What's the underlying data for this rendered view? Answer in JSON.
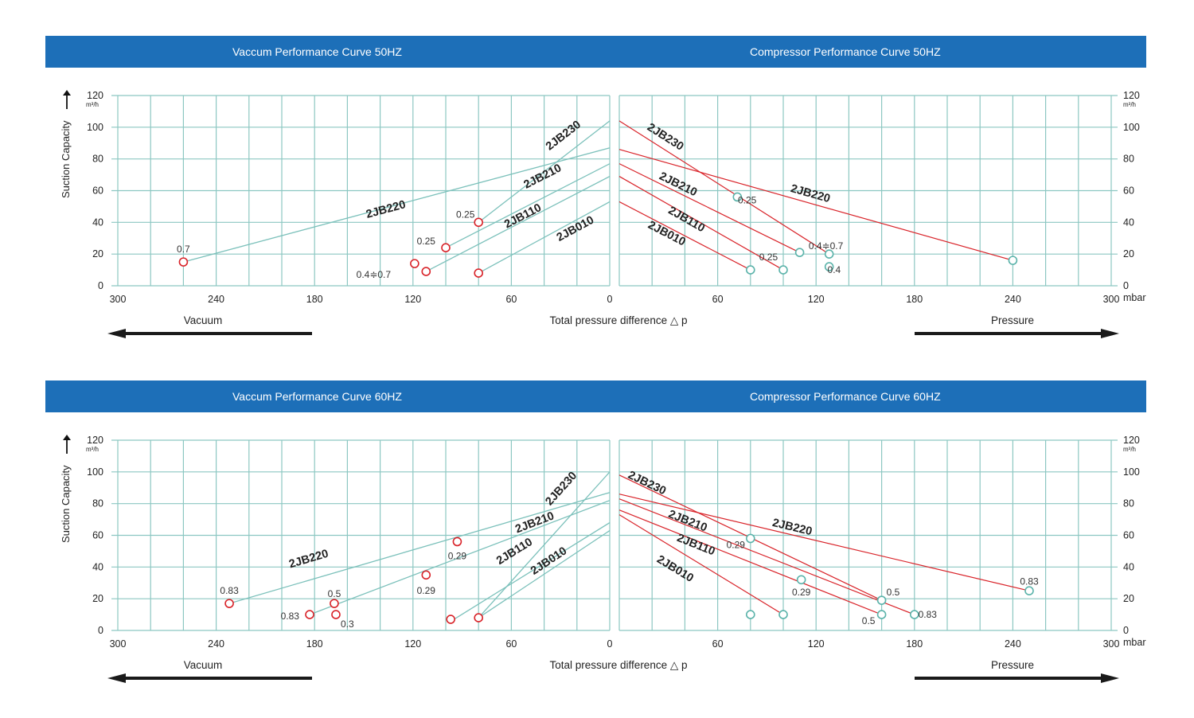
{
  "colors": {
    "header_bg": "#1d6fb8",
    "grid": "#8cc7c2",
    "vacuum_line": "#7cc1bb",
    "compressor_line": "#d9242a",
    "vacuum_point": "#d9242a",
    "compressor_point": "#5bb3aa"
  },
  "common": {
    "y_ticks": [
      "0",
      "20",
      "40",
      "60",
      "80",
      "100",
      "120"
    ],
    "y_unit": "m³/h",
    "y_axis_label": "Suction Capacity",
    "x_ticks_vacuum": [
      "300",
      "240",
      "180",
      "120",
      "60",
      "0"
    ],
    "x_ticks_compressor": [
      "60",
      "120",
      "180",
      "240",
      "300"
    ],
    "x_unit": "mbar",
    "center_label": "Total pressure difference △ p",
    "vacuum_word": "Vacuum",
    "pressure_word": "Pressure"
  },
  "chart_data": [
    {
      "type": "line",
      "title": "Vaccum Performance Curve 50HZ",
      "xlabel": "Total pressure difference △ p",
      "ylabel": "Suction Capacity",
      "xlim": [
        300,
        0
      ],
      "ylim": [
        0,
        120
      ],
      "series": [
        {
          "name": "2JB230",
          "x": [
            0,
            80
          ],
          "y": [
            104,
            40
          ],
          "label_x": 27,
          "label_y": 93
        },
        {
          "name": "2JB220",
          "x": [
            0,
            260
          ],
          "y": [
            87,
            15
          ],
          "label_x": 136,
          "label_y": 46
        },
        {
          "name": "2JB210",
          "x": [
            0,
            100
          ],
          "y": [
            77,
            24
          ],
          "label_x": 40,
          "label_y": 67
        },
        {
          "name": "2JB110",
          "x": [
            0,
            112
          ],
          "y": [
            69,
            9
          ],
          "label_x": 52,
          "label_y": 42
        },
        {
          "name": "2JB010",
          "x": [
            0,
            80
          ],
          "y": [
            53,
            8
          ],
          "label_x": 20,
          "label_y": 34
        }
      ],
      "points": [
        {
          "x": 260,
          "y": 15,
          "label": "0.7",
          "lx": 260,
          "ly": 23
        },
        {
          "x": 80,
          "y": 40,
          "label": "0.25",
          "lx": 88,
          "ly": 45
        },
        {
          "x": 100,
          "y": 24,
          "label": "0.25",
          "lx": 112,
          "ly": 28
        },
        {
          "x": 119,
          "y": 14,
          "label": "0.4≑0.7",
          "lx": 144,
          "ly": 7
        },
        {
          "x": 112,
          "y": 9,
          "label": "",
          "lx": 0,
          "ly": 0
        },
        {
          "x": 80,
          "y": 8,
          "label": "",
          "lx": 0,
          "ly": 0
        }
      ]
    },
    {
      "type": "line",
      "title": "Compressor Performance Curve 50HZ",
      "xlabel": "Total pressure difference △ p",
      "ylabel": "Suction Capacity",
      "xlim": [
        0,
        300
      ],
      "ylim": [
        0,
        120
      ],
      "series": [
        {
          "name": "2JB230",
          "x": [
            0,
            128
          ],
          "y": [
            104,
            20
          ],
          "label_x": 27,
          "label_y": 92
        },
        {
          "name": "2JB220",
          "x": [
            0,
            240
          ],
          "y": [
            86,
            16
          ],
          "label_x": 116,
          "label_y": 56
        },
        {
          "name": "2JB210",
          "x": [
            0,
            110
          ],
          "y": [
            77,
            21
          ],
          "label_x": 35,
          "label_y": 62
        },
        {
          "name": "2JB110",
          "x": [
            0,
            100
          ],
          "y": [
            69,
            10
          ],
          "label_x": 40,
          "label_y": 40
        },
        {
          "name": "2JB010",
          "x": [
            0,
            80
          ],
          "y": [
            53,
            10
          ],
          "label_x": 28,
          "label_y": 31
        }
      ],
      "points": [
        {
          "x": 72,
          "y": 56,
          "label": "0.25",
          "lx": 78,
          "ly": 54
        },
        {
          "x": 240,
          "y": 16,
          "label": "",
          "lx": 0,
          "ly": 0
        },
        {
          "x": 110,
          "y": 21,
          "label": "0.25",
          "lx": 91,
          "ly": 18
        },
        {
          "x": 128,
          "y": 20,
          "label": "0.4≑0.7",
          "lx": 126,
          "ly": 25
        },
        {
          "x": 128,
          "y": 12,
          "label": "0.4",
          "lx": 131,
          "ly": 10
        },
        {
          "x": 100,
          "y": 10,
          "label": "",
          "lx": 0,
          "ly": 0
        },
        {
          "x": 80,
          "y": 10,
          "label": "",
          "lx": 0,
          "ly": 0
        }
      ]
    },
    {
      "type": "line",
      "title": "Vaccum Performance Curve 60HZ",
      "xlabel": "Total pressure difference △ p",
      "ylabel": "Suction Capacity",
      "xlim": [
        300,
        0
      ],
      "ylim": [
        0,
        120
      ],
      "series": [
        {
          "name": "2JB230",
          "x": [
            0,
            80
          ],
          "y": [
            100,
            8
          ],
          "label_x": 28,
          "label_y": 88
        },
        {
          "name": "2JB220",
          "x": [
            0,
            232
          ],
          "y": [
            87,
            17
          ],
          "label_x": 183,
          "label_y": 43
        },
        {
          "name": "2JB210",
          "x": [
            0,
            183
          ],
          "y": [
            82,
            10
          ],
          "label_x": 45,
          "label_y": 66
        },
        {
          "name": "2JB110",
          "x": [
            0,
            95
          ],
          "y": [
            68,
            7
          ],
          "label_x": 57,
          "label_y": 48
        },
        {
          "name": "2JB010",
          "x": [
            0,
            80
          ],
          "y": [
            63,
            8
          ],
          "label_x": 36,
          "label_y": 42
        }
      ],
      "points": [
        {
          "x": 232,
          "y": 17,
          "label": "0.83",
          "lx": 232,
          "ly": 25
        },
        {
          "x": 183,
          "y": 10,
          "label": "0.83",
          "lx": 195,
          "ly": 9
        },
        {
          "x": 168,
          "y": 17,
          "label": "0.5",
          "lx": 168,
          "ly": 23
        },
        {
          "x": 167,
          "y": 10,
          "label": "0.3",
          "lx": 160,
          "ly": 4
        },
        {
          "x": 93,
          "y": 56,
          "label": "0.29",
          "lx": 93,
          "ly": 47
        },
        {
          "x": 112,
          "y": 35,
          "label": "0.29",
          "lx": 112,
          "ly": 25
        },
        {
          "x": 97,
          "y": 7,
          "label": "",
          "lx": 0,
          "ly": 0
        },
        {
          "x": 80,
          "y": 8,
          "label": "",
          "lx": 0,
          "ly": 0
        }
      ]
    },
    {
      "type": "line",
      "title": "Compressor Performance Curve 60HZ",
      "xlabel": "Total pressure difference △ p",
      "ylabel": "Suction Capacity",
      "xlim": [
        0,
        300
      ],
      "ylim": [
        0,
        120
      ],
      "series": [
        {
          "name": "2JB230",
          "x": [
            0,
            160
          ],
          "y": [
            98,
            19
          ],
          "label_x": 16,
          "label_y": 91
        },
        {
          "name": "2JB220",
          "x": [
            0,
            250
          ],
          "y": [
            86,
            25
          ],
          "label_x": 105,
          "label_y": 63
        },
        {
          "name": "2JB210",
          "x": [
            0,
            180
          ],
          "y": [
            83,
            10
          ],
          "label_x": 41,
          "label_y": 67
        },
        {
          "name": "2JB110",
          "x": [
            0,
            160
          ],
          "y": [
            76,
            10
          ],
          "label_x": 46,
          "label_y": 52
        },
        {
          "name": "2JB010",
          "x": [
            0,
            100
          ],
          "y": [
            73,
            10
          ],
          "label_x": 33,
          "label_y": 37
        }
      ],
      "points": [
        {
          "x": 80,
          "y": 58,
          "label": "0.29",
          "lx": 71,
          "ly": 54
        },
        {
          "x": 250,
          "y": 25,
          "label": "0.83",
          "lx": 250,
          "ly": 31
        },
        {
          "x": 111,
          "y": 32,
          "label": "0.29",
          "lx": 111,
          "ly": 24
        },
        {
          "x": 160,
          "y": 19,
          "label": "0.5",
          "lx": 167,
          "ly": 24
        },
        {
          "x": 160,
          "y": 10,
          "label": "0.5",
          "lx": 152,
          "ly": 6
        },
        {
          "x": 180,
          "y": 10,
          "label": "0.83",
          "lx": 188,
          "ly": 10
        },
        {
          "x": 100,
          "y": 10,
          "label": "",
          "lx": 0,
          "ly": 0
        },
        {
          "x": 80,
          "y": 10,
          "label": "",
          "lx": 0,
          "ly": 0
        }
      ]
    }
  ]
}
